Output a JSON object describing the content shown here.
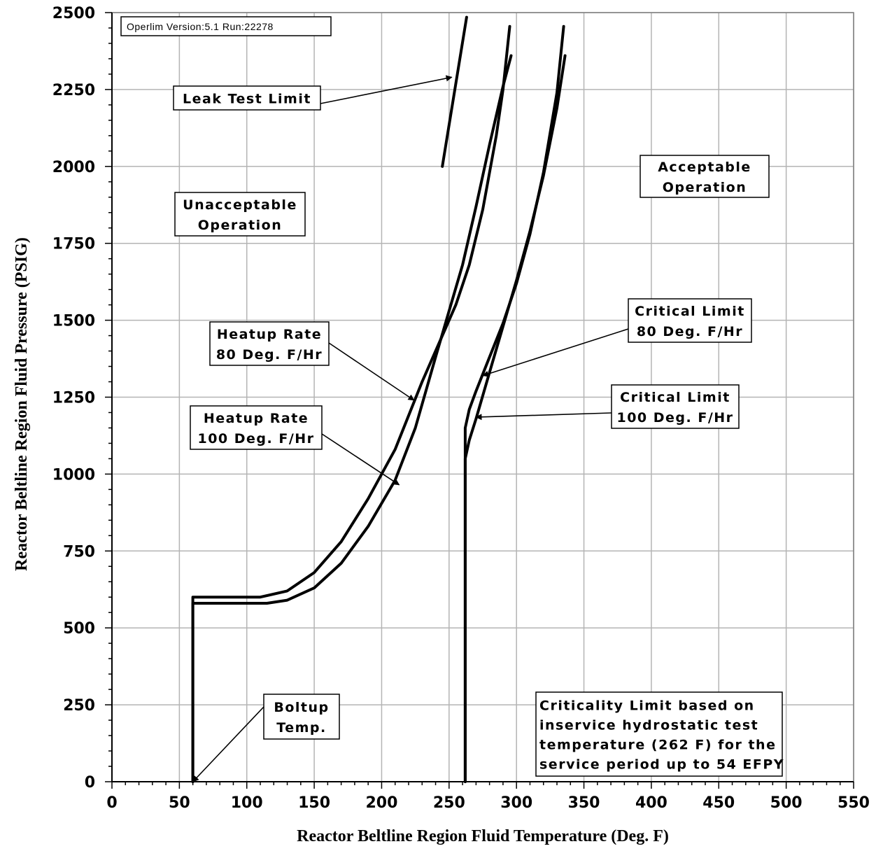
{
  "chart_data": {
    "type": "line",
    "title": "",
    "xlabel": "Reactor Beltline Region Fluid Temperature (Deg. F)",
    "ylabel": "Reactor Beltline Region Fluid Pressure (PSIG)",
    "xlim": [
      0,
      550
    ],
    "ylim": [
      0,
      2500
    ],
    "x_ticks": [
      0,
      50,
      100,
      150,
      200,
      250,
      300,
      350,
      400,
      450,
      500,
      550
    ],
    "y_ticks": [
      0,
      250,
      500,
      750,
      1000,
      1250,
      1500,
      1750,
      2000,
      2250,
      2500
    ],
    "grid": true,
    "legend": "none",
    "version_note": "Operlim Version:5.1 Run:22278",
    "series": [
      {
        "key": "leak_test_limit",
        "x": [
          245,
          263
        ],
        "y": [
          2000,
          2485
        ]
      },
      {
        "key": "heatup_80",
        "x": [
          60,
          60,
          110,
          130,
          150,
          170,
          190,
          210,
          230,
          245,
          255,
          265,
          275,
          285,
          290,
          295
        ],
        "y": [
          0,
          600,
          600,
          620,
          680,
          780,
          920,
          1080,
          1300,
          1450,
          1550,
          1680,
          1860,
          2100,
          2250,
          2455
        ]
      },
      {
        "key": "heatup_100",
        "x": [
          60,
          60,
          115,
          130,
          150,
          170,
          190,
          210,
          225,
          240,
          250,
          260,
          270,
          280,
          290,
          296
        ],
        "y": [
          0,
          580,
          580,
          590,
          630,
          710,
          830,
          980,
          1150,
          1380,
          1530,
          1680,
          1870,
          2070,
          2260,
          2360
        ]
      },
      {
        "key": "critical_80",
        "x": [
          262,
          262,
          265,
          270,
          280,
          290,
          300,
          310,
          320,
          330,
          335
        ],
        "y": [
          0,
          1150,
          1210,
          1270,
          1380,
          1490,
          1620,
          1780,
          1980,
          2240,
          2455
        ]
      },
      {
        "key": "critical_100",
        "x": [
          262,
          262,
          265,
          270,
          280,
          290,
          300,
          310,
          320,
          330,
          336
        ],
        "y": [
          0,
          1050,
          1110,
          1180,
          1330,
          1480,
          1630,
          1790,
          1970,
          2190,
          2360
        ]
      }
    ],
    "annotations": [
      {
        "key": "leak",
        "lines": [
          "Leak Test Limit"
        ],
        "arrow_to": [
          252,
          2290
        ]
      },
      {
        "key": "unacceptable",
        "lines": [
          "Unacceptable",
          "Operation"
        ]
      },
      {
        "key": "acceptable",
        "lines": [
          "Acceptable",
          "Operation"
        ]
      },
      {
        "key": "heat80",
        "lines": [
          "Heatup Rate",
          "80 Deg. F/Hr"
        ],
        "arrow_to": [
          224,
          1240
        ]
      },
      {
        "key": "heat100",
        "lines": [
          "Heatup Rate",
          "100 Deg. F/Hr"
        ],
        "arrow_to": [
          213,
          965
        ]
      },
      {
        "key": "crit80",
        "lines": [
          "Critical Limit",
          "80 Deg. F/Hr"
        ],
        "arrow_to": [
          275,
          1320
        ]
      },
      {
        "key": "crit100",
        "lines": [
          "Critical Limit",
          "100 Deg. F/Hr"
        ],
        "arrow_to": [
          270,
          1185
        ]
      },
      {
        "key": "boltup",
        "lines": [
          "Boltup",
          "Temp."
        ],
        "arrow_to": [
          60,
          0
        ]
      },
      {
        "key": "criticality",
        "lines": [
          "Criticality Limit based on",
          "inservice hydrostatic test",
          " temperature (262 F) for the",
          "service period up to 54 EFPY"
        ]
      }
    ]
  }
}
